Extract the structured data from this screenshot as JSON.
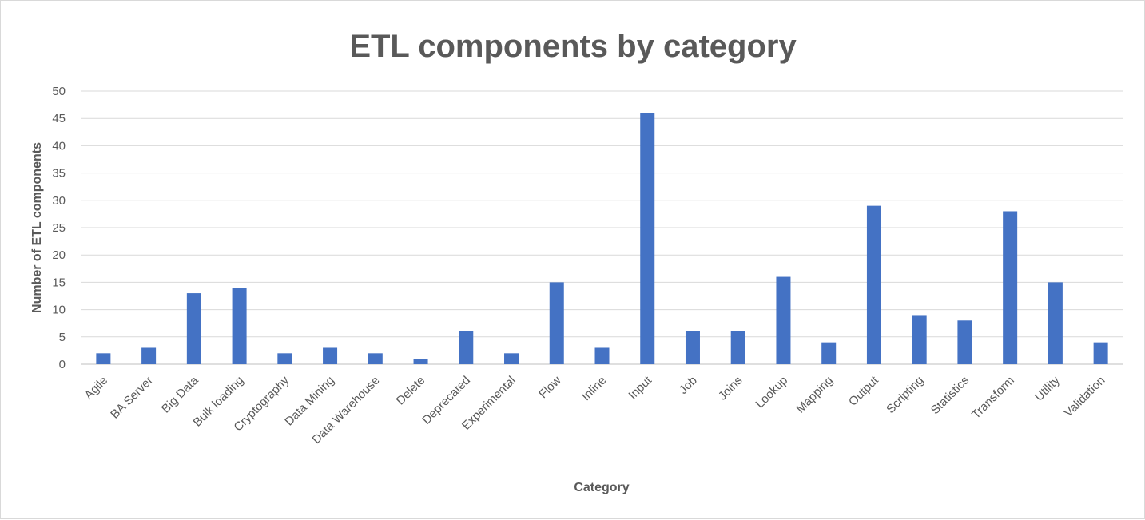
{
  "chart_data": {
    "type": "bar",
    "title": "ETL components by category",
    "xlabel": "Category",
    "ylabel": "Number of ETL components",
    "ylim": [
      0,
      50
    ],
    "yticks": [
      0,
      5,
      10,
      15,
      20,
      25,
      30,
      35,
      40,
      45,
      50
    ],
    "grid": true,
    "legend": "none",
    "bar_color": "#4472c4",
    "categories": [
      "Agile",
      "BA Server",
      "Big Data",
      "Bulk loading",
      "Cryptography",
      "Data Mining",
      "Data Warehouse",
      "Delete",
      "Deprecated",
      "Experimental",
      "Flow",
      "Inline",
      "Input",
      "Job",
      "Joins",
      "Lookup",
      "Mapping",
      "Output",
      "Scripting",
      "Statistics",
      "Transform",
      "Utility",
      "Validation"
    ],
    "values": [
      2,
      3,
      13,
      14,
      2,
      3,
      2,
      1,
      6,
      2,
      15,
      3,
      46,
      6,
      6,
      16,
      4,
      29,
      9,
      8,
      28,
      15,
      4
    ]
  }
}
